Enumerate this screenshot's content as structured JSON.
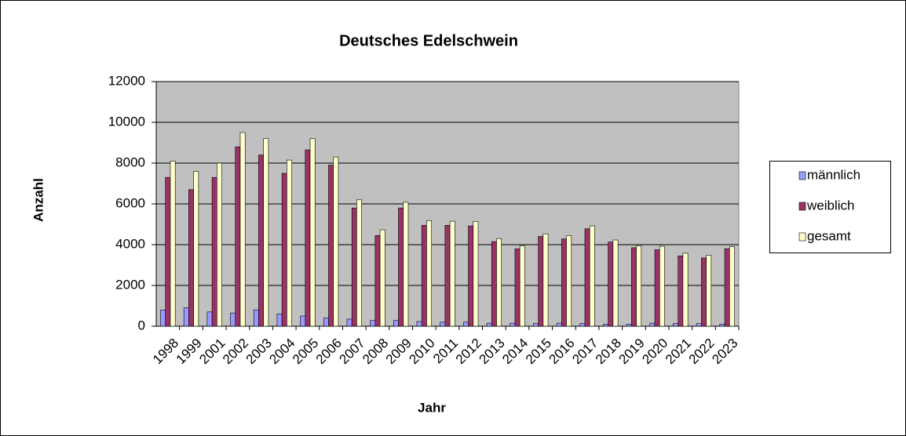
{
  "chart_data": {
    "type": "bar",
    "title": "Deutsches Edelschwein",
    "x_label": "Jahr",
    "y_label": "Anzahl",
    "categories": [
      "1998",
      "1999",
      "2001",
      "2002",
      "2003",
      "2004",
      "2005",
      "2006",
      "2007",
      "2008",
      "2009",
      "2010",
      "2011",
      "2012",
      "2013",
      "2014",
      "2015",
      "2016",
      "2017",
      "2018",
      "2019",
      "2020",
      "2021",
      "2022",
      "2023"
    ],
    "series": [
      {
        "name": "männlich",
        "color": "#9999ff",
        "values": [
          800,
          900,
          700,
          650,
          800,
          600,
          500,
          400,
          350,
          280,
          280,
          230,
          200,
          200,
          150,
          150,
          130,
          150,
          130,
          100,
          100,
          150,
          130,
          130,
          100
        ]
      },
      {
        "name": "weiblich",
        "color": "#993366",
        "values": [
          7300,
          6700,
          7300,
          8800,
          8400,
          7500,
          8650,
          7900,
          5800,
          4450,
          5800,
          4950,
          4950,
          4920,
          4150,
          3800,
          4400,
          4280,
          4780,
          4130,
          3850,
          3750,
          3450,
          3350,
          3800
        ]
      },
      {
        "name": "gesamt",
        "color": "#ffffcc",
        "values": [
          8100,
          7600,
          8000,
          9500,
          9200,
          8150,
          9200,
          8300,
          6200,
          4730,
          6080,
          5180,
          5150,
          5140,
          4300,
          3950,
          4530,
          4450,
          4920,
          4230,
          3950,
          3920,
          3580,
          3480,
          3900
        ]
      }
    ],
    "ylim": [
      0,
      12000
    ],
    "yticks": [
      0,
      2000,
      4000,
      6000,
      8000,
      10000,
      12000
    ],
    "grid": true,
    "legend": "right",
    "plot_background": "#c0c0c0"
  }
}
